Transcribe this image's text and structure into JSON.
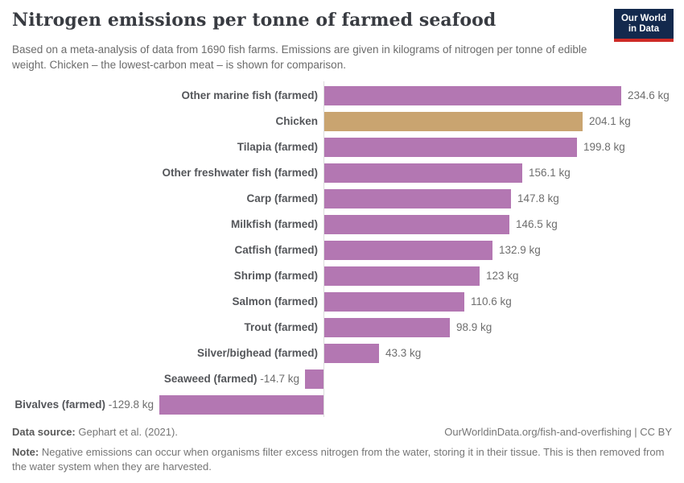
{
  "header": {
    "title": "Nitrogen emissions per tonne of farmed seafood",
    "subtitle": "Based on a meta-analysis of data from 1690 fish farms. Emissions are given in kilograms of nitrogen per tonne of edible weight. Chicken – the lowest-carbon meat – is shown for comparison.",
    "logo": {
      "line1": "Our World",
      "line2": "in Data",
      "bg_color": "#13294d",
      "stripe_color": "#cf2b26"
    }
  },
  "chart_data": {
    "type": "bar",
    "orientation": "horizontal",
    "title": "Nitrogen emissions per tonne of farmed seafood",
    "unit": "kg of nitrogen per tonne of edible weight",
    "xlim": [
      -130,
      240
    ],
    "grid": false,
    "legend": "none",
    "categories": [
      "Other marine fish (farmed)",
      "Chicken",
      "Tilapia (farmed)",
      "Other freshwater fish (farmed)",
      "Carp (farmed)",
      "Milkfish (farmed)",
      "Catfish (farmed)",
      "Shrimp (farmed)",
      "Salmon (farmed)",
      "Trout (farmed)",
      "Silver/bighead (farmed)",
      "Seaweed (farmed)",
      "Bivalves (farmed)"
    ],
    "values": [
      234.6,
      204.1,
      199.8,
      156.1,
      147.8,
      146.5,
      132.9,
      123,
      110.6,
      98.9,
      43.3,
      -14.7,
      -129.8
    ],
    "value_labels": [
      "234.6 kg",
      "204.1 kg",
      "199.8 kg",
      "156.1 kg",
      "147.8 kg",
      "146.5 kg",
      "132.9 kg",
      "123 kg",
      "110.6 kg",
      "98.9 kg",
      "43.3 kg",
      "-14.7 kg",
      "-129.8 kg"
    ],
    "highlight_category": "Chicken",
    "colors": {
      "default": "#b377b2",
      "highlight": "#c9a470",
      "axis": "#dcdcdc"
    }
  },
  "footer": {
    "datasource_label": "Data source:",
    "datasource_value": "Gephart et al. (2021).",
    "link": "OurWorldinData.org/fish-and-overfishing | CC BY",
    "note_label": "Note:",
    "note_text": "Negative emissions can occur when organisms filter excess nitrogen from the water, storing it in their tissue. This is then removed from the water system when they are harvested."
  }
}
